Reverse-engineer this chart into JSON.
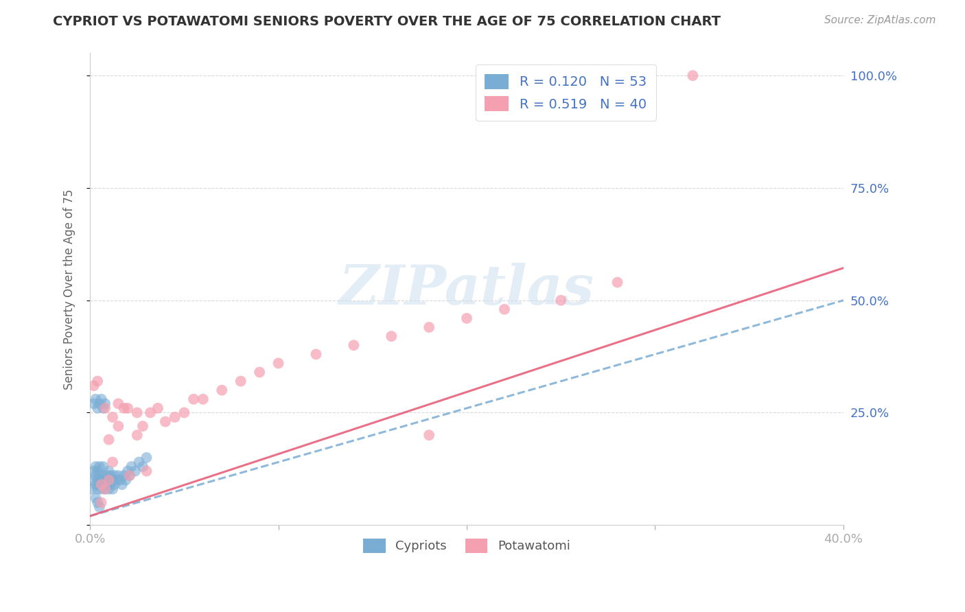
{
  "title": "CYPRIOT VS POTAWATOMI SENIORS POVERTY OVER THE AGE OF 75 CORRELATION CHART",
  "source": "Source: ZipAtlas.com",
  "ylabel": "Seniors Poverty Over the Age of 75",
  "xlim": [
    0.0,
    0.4
  ],
  "ylim": [
    0.0,
    1.05
  ],
  "background_color": "#ffffff",
  "watermark_text": "ZIPatlas",
  "cypriot_color": "#7aadd4",
  "potawatomi_color": "#f4a0b0",
  "trendline_cypriot_color": "#7aadd4",
  "trendline_potawatomi_color": "#e8607a",
  "cypriot_R": 0.12,
  "cypriot_N": 53,
  "potawatomi_R": 0.519,
  "potawatomi_N": 40,
  "cypriot_line_intercept": 0.02,
  "cypriot_line_slope": 1.2,
  "potawatomi_line_intercept": 0.02,
  "potawatomi_line_slope": 1.38,
  "grid_color": "#d0d0d0",
  "axis_label_color": "#4472c4",
  "ylabel_color": "#666666",
  "title_color": "#333333",
  "source_color": "#999999",
  "legend_label_color": "#4472c4",
  "bottom_legend_label_color": "#555555",
  "cypriot_x": [
    0.001,
    0.002,
    0.002,
    0.003,
    0.003,
    0.003,
    0.004,
    0.004,
    0.004,
    0.005,
    0.005,
    0.005,
    0.006,
    0.006,
    0.007,
    0.007,
    0.007,
    0.008,
    0.008,
    0.009,
    0.009,
    0.01,
    0.01,
    0.01,
    0.011,
    0.011,
    0.012,
    0.012,
    0.013,
    0.013,
    0.014,
    0.015,
    0.016,
    0.017,
    0.018,
    0.019,
    0.02,
    0.021,
    0.022,
    0.024,
    0.026,
    0.028,
    0.03,
    0.002,
    0.003,
    0.004,
    0.005,
    0.006,
    0.007,
    0.008,
    0.003,
    0.004,
    0.005
  ],
  "cypriot_y": [
    0.08,
    0.1,
    0.12,
    0.09,
    0.11,
    0.13,
    0.08,
    0.1,
    0.12,
    0.09,
    0.11,
    0.13,
    0.08,
    0.1,
    0.09,
    0.11,
    0.13,
    0.08,
    0.1,
    0.09,
    0.11,
    0.08,
    0.1,
    0.12,
    0.09,
    0.11,
    0.08,
    0.1,
    0.09,
    0.11,
    0.1,
    0.11,
    0.1,
    0.09,
    0.11,
    0.1,
    0.12,
    0.11,
    0.13,
    0.12,
    0.14,
    0.13,
    0.15,
    0.27,
    0.28,
    0.26,
    0.27,
    0.28,
    0.26,
    0.27,
    0.06,
    0.05,
    0.04
  ],
  "potawatomi_x": [
    0.002,
    0.004,
    0.006,
    0.008,
    0.01,
    0.012,
    0.015,
    0.018,
    0.021,
    0.025,
    0.028,
    0.032,
    0.036,
    0.04,
    0.045,
    0.05,
    0.055,
    0.06,
    0.07,
    0.08,
    0.09,
    0.1,
    0.12,
    0.14,
    0.16,
    0.18,
    0.2,
    0.22,
    0.25,
    0.28,
    0.01,
    0.015,
    0.02,
    0.008,
    0.012,
    0.006,
    0.025,
    0.03,
    0.18,
    0.32
  ],
  "potawatomi_y": [
    0.31,
    0.32,
    0.09,
    0.26,
    0.1,
    0.24,
    0.27,
    0.26,
    0.11,
    0.25,
    0.22,
    0.25,
    0.26,
    0.23,
    0.24,
    0.25,
    0.28,
    0.28,
    0.3,
    0.32,
    0.34,
    0.36,
    0.38,
    0.4,
    0.42,
    0.44,
    0.46,
    0.48,
    0.5,
    0.54,
    0.19,
    0.22,
    0.26,
    0.08,
    0.14,
    0.05,
    0.2,
    0.12,
    0.2,
    1.0
  ]
}
